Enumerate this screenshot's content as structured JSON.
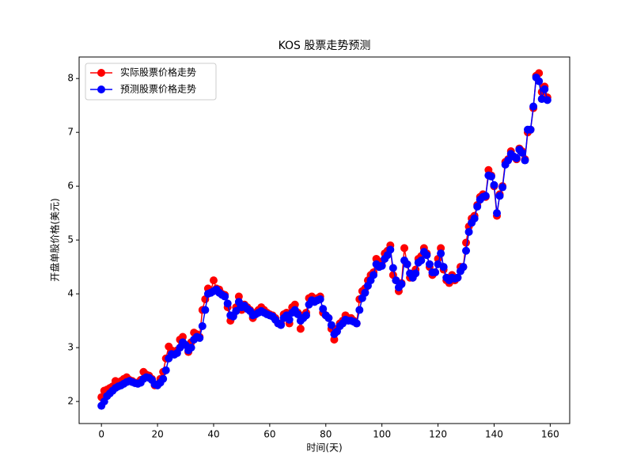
{
  "chart_data": {
    "type": "line",
    "title": "KOS 股票走势预测",
    "x_label": "时间(天)",
    "y_label": "开盘单股价格(美元)",
    "x": [
      0,
      1,
      2,
      3,
      4,
      5,
      6,
      7,
      8,
      9,
      10,
      11,
      12,
      13,
      14,
      15,
      16,
      17,
      18,
      19,
      20,
      21,
      22,
      23,
      24,
      25,
      26,
      27,
      28,
      29,
      30,
      31,
      32,
      33,
      34,
      35,
      36,
      37,
      38,
      39,
      40,
      41,
      42,
      43,
      44,
      45,
      46,
      47,
      48,
      49,
      50,
      51,
      52,
      53,
      54,
      55,
      56,
      57,
      58,
      59,
      60,
      61,
      62,
      63,
      64,
      65,
      66,
      67,
      68,
      69,
      70,
      71,
      72,
      73,
      74,
      75,
      76,
      77,
      78,
      79,
      80,
      81,
      82,
      83,
      84,
      85,
      86,
      87,
      88,
      89,
      90,
      91,
      92,
      93,
      94,
      95,
      96,
      97,
      98,
      99,
      100,
      101,
      102,
      103,
      104,
      105,
      106,
      107,
      108,
      109,
      110,
      111,
      112,
      113,
      114,
      115,
      116,
      117,
      118,
      119,
      120,
      121,
      122,
      123,
      124,
      125,
      126,
      127,
      128,
      129,
      130,
      131,
      132,
      133,
      134,
      135,
      136,
      137,
      138,
      139,
      140,
      141,
      142,
      143,
      144,
      145,
      146,
      147,
      148,
      149,
      150,
      151,
      152,
      153,
      154,
      155,
      156,
      157,
      158,
      159
    ],
    "series": [
      {
        "name": "实际股票价格走势",
        "color": "#ff0000",
        "values": [
          2.08,
          2.2,
          2.22,
          2.25,
          2.28,
          2.38,
          2.35,
          2.38,
          2.42,
          2.45,
          2.4,
          2.38,
          2.35,
          2.35,
          2.4,
          2.55,
          2.5,
          2.48,
          2.42,
          2.3,
          2.32,
          2.42,
          2.55,
          2.8,
          3.02,
          2.95,
          2.9,
          2.95,
          3.15,
          3.2,
          3.05,
          2.92,
          3.1,
          3.28,
          3.25,
          3.2,
          3.7,
          3.9,
          4.1,
          4.05,
          4.25,
          4.1,
          4.08,
          4.0,
          3.98,
          3.75,
          3.5,
          3.6,
          3.75,
          3.95,
          3.7,
          3.8,
          3.75,
          3.7,
          3.55,
          3.65,
          3.7,
          3.75,
          3.7,
          3.65,
          3.62,
          3.6,
          3.55,
          3.45,
          3.45,
          3.62,
          3.65,
          3.45,
          3.75,
          3.8,
          3.65,
          3.35,
          3.6,
          3.65,
          3.92,
          3.95,
          3.9,
          3.92,
          3.95,
          3.65,
          3.6,
          3.55,
          3.35,
          3.15,
          3.35,
          3.45,
          3.5,
          3.6,
          3.55,
          3.55,
          3.5,
          3.45,
          3.9,
          4.05,
          4.1,
          4.25,
          4.35,
          4.4,
          4.65,
          4.55,
          4.6,
          4.75,
          4.8,
          4.9,
          4.35,
          4.25,
          4.05,
          4.2,
          4.85,
          4.55,
          4.3,
          4.3,
          4.45,
          4.65,
          4.7,
          4.85,
          4.75,
          4.5,
          4.35,
          4.4,
          4.65,
          4.85,
          4.45,
          4.25,
          4.2,
          4.35,
          4.25,
          4.3,
          4.5,
          4.5,
          4.95,
          5.25,
          5.4,
          5.45,
          5.65,
          5.8,
          5.85,
          5.8,
          6.3,
          6.2,
          6.0,
          5.45,
          5.85,
          6.0,
          6.45,
          6.5,
          6.65,
          6.55,
          6.5,
          6.7,
          6.65,
          6.5,
          7.0,
          7.05,
          7.45,
          8.05,
          8.1,
          7.75,
          7.85,
          7.65
        ]
      },
      {
        "name": "预测股票价格走势",
        "color": "#0000ff",
        "values": [
          1.92,
          2.0,
          2.1,
          2.15,
          2.2,
          2.25,
          2.28,
          2.3,
          2.33,
          2.36,
          2.38,
          2.36,
          2.34,
          2.33,
          2.35,
          2.42,
          2.45,
          2.44,
          2.4,
          2.32,
          2.3,
          2.35,
          2.42,
          2.58,
          2.8,
          2.88,
          2.87,
          2.9,
          3.0,
          3.1,
          3.05,
          2.95,
          3.0,
          3.15,
          3.2,
          3.18,
          3.4,
          3.7,
          4.0,
          4.02,
          4.05,
          4.08,
          4.02,
          3.98,
          3.95,
          3.82,
          3.6,
          3.58,
          3.68,
          3.85,
          3.75,
          3.78,
          3.72,
          3.68,
          3.6,
          3.62,
          3.65,
          3.68,
          3.65,
          3.62,
          3.6,
          3.58,
          3.52,
          3.45,
          3.42,
          3.55,
          3.6,
          3.52,
          3.65,
          3.7,
          3.62,
          3.5,
          3.55,
          3.6,
          3.8,
          3.88,
          3.85,
          3.88,
          3.9,
          3.72,
          3.6,
          3.55,
          3.42,
          3.25,
          3.3,
          3.4,
          3.45,
          3.52,
          3.5,
          3.5,
          3.48,
          3.45,
          3.7,
          3.92,
          4.02,
          4.15,
          4.25,
          4.35,
          4.55,
          4.5,
          4.52,
          4.65,
          4.72,
          4.82,
          4.48,
          4.25,
          4.12,
          4.18,
          4.62,
          4.55,
          4.38,
          4.3,
          4.38,
          4.58,
          4.62,
          4.78,
          4.72,
          4.55,
          4.4,
          4.4,
          4.55,
          4.75,
          4.5,
          4.3,
          4.25,
          4.3,
          4.28,
          4.3,
          4.42,
          4.5,
          4.8,
          5.15,
          5.32,
          5.4,
          5.62,
          5.75,
          5.8,
          5.82,
          6.2,
          6.18,
          6.02,
          5.5,
          5.82,
          5.98,
          6.4,
          6.48,
          6.6,
          6.55,
          6.52,
          6.68,
          6.62,
          6.48,
          7.05,
          7.05,
          7.48,
          8.02,
          7.95,
          7.62,
          7.8,
          7.6
        ]
      }
    ],
    "xlim": [
      -7.95,
      166.95
    ],
    "ylim": [
      1.59,
      8.4
    ],
    "xticks": [
      0,
      20,
      40,
      60,
      80,
      100,
      120,
      140,
      160
    ],
    "yticks": [
      2,
      3,
      4,
      5,
      6,
      7,
      8
    ],
    "legend": "upper left"
  }
}
